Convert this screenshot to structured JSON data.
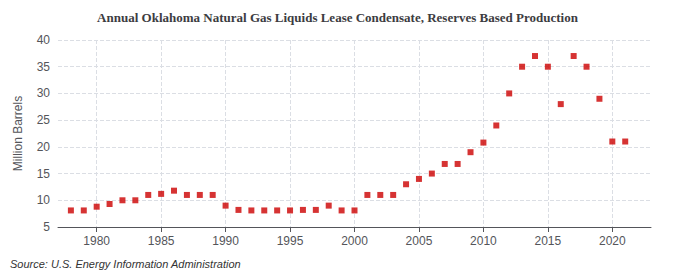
{
  "chart_data": {
    "type": "scatter",
    "title": "Annual Oklahoma Natural Gas Liquids Lease Condensate, Reserves Based Production",
    "ylabel": "Million Barrels",
    "annotation": "Source: U.S. Energy Information Administration",
    "color": "#cc0000",
    "marker": "square",
    "x": [
      1978,
      1979,
      1980,
      1981,
      1982,
      1983,
      1984,
      1985,
      1986,
      1987,
      1988,
      1989,
      1990,
      1991,
      1992,
      1993,
      1994,
      1995,
      1996,
      1997,
      1998,
      1999,
      2000,
      2001,
      2002,
      2003,
      2004,
      2005,
      2006,
      2007,
      2008,
      2009,
      2010,
      2011,
      2012,
      2013,
      2014,
      2015,
      2016,
      2017,
      2018,
      2019,
      2020,
      2021
    ],
    "values": [
      8.1,
      8.1,
      8.8,
      9.3,
      10.0,
      10.0,
      11.0,
      11.2,
      11.8,
      11.0,
      11.0,
      11.0,
      9.0,
      8.2,
      8.1,
      8.1,
      8.1,
      8.1,
      8.2,
      8.2,
      9.0,
      8.1,
      8.1,
      11.0,
      11.0,
      11.0,
      13.0,
      14.0,
      15.0,
      16.8,
      16.8,
      19.0,
      20.8,
      24.0,
      30.0,
      35.0,
      37.0,
      35.0,
      28.0,
      37.0,
      35.0,
      29.0,
      21.0,
      21.0
    ],
    "xlim": [
      1977,
      2023
    ],
    "ylim": [
      5,
      40
    ],
    "xticks": [
      1980,
      1985,
      1990,
      1995,
      2000,
      2005,
      2010,
      2015,
      2020
    ],
    "yticks": [
      5,
      10,
      15,
      20,
      25,
      30,
      35,
      40
    ],
    "grid": true
  }
}
